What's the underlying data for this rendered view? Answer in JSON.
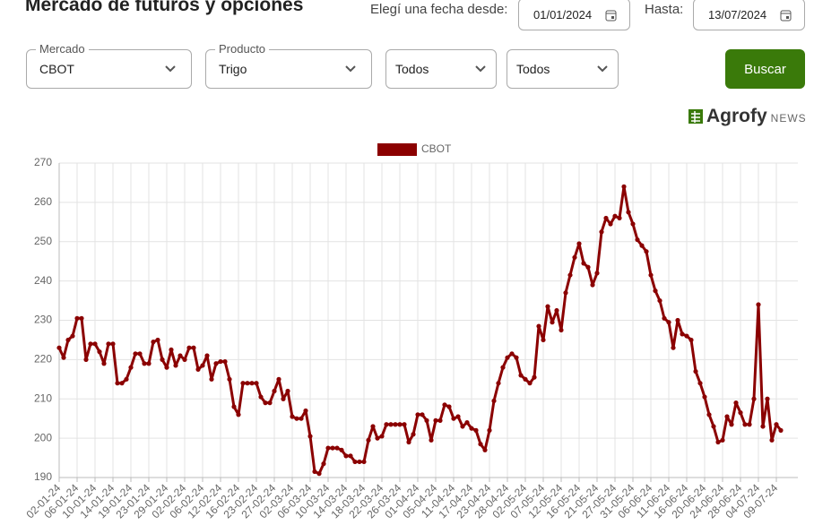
{
  "header": {
    "title": "Mercado de futuros y opciones",
    "date_from_label": "Elegí una fecha desde:",
    "date_from": "01/01/2024",
    "date_to_label": "Hasta:",
    "date_to": "13/07/2024"
  },
  "filters": [
    {
      "label": "Mercado",
      "value": "CBOT"
    },
    {
      "label": "Producto",
      "value": "Trigo"
    },
    {
      "value": "Todos"
    },
    {
      "value": "Todos"
    }
  ],
  "button": "Buscar",
  "logo": {
    "brand": "Agrofy",
    "sub": "NEWS"
  },
  "chart_data": {
    "type": "line",
    "categories": [
      "02-01-24",
      null,
      null,
      null,
      "06-01-24",
      null,
      null,
      null,
      "10-01-24",
      null,
      null,
      null,
      "14-01-24",
      null,
      null,
      null,
      "19-01-24",
      null,
      null,
      null,
      "23-01-24",
      null,
      null,
      null,
      "29-01-24",
      null,
      null,
      null,
      "02-02-24",
      null,
      null,
      null,
      "06-02-24",
      null,
      null,
      null,
      "12-02-24",
      null,
      null,
      null,
      "16-02-24",
      null,
      null,
      null,
      "23-02-24",
      null,
      null,
      null,
      "27-02-24",
      null,
      null,
      null,
      "02-03-24",
      null,
      null,
      null,
      "06-03-24",
      null,
      null,
      null,
      "10-03-24",
      null,
      null,
      null,
      "14-03-24",
      null,
      null,
      null,
      "18-03-24",
      null,
      null,
      null,
      "22-03-24",
      null,
      null,
      null,
      "26-03-24",
      null,
      null,
      null,
      "01-04-24",
      null,
      null,
      null,
      "05-04-24",
      null,
      null,
      null,
      "11-04-24",
      null,
      null,
      null,
      "17-04-24",
      null,
      null,
      null,
      "23-04-24",
      null,
      null,
      null,
      "28-04-24",
      null,
      null,
      null,
      "02-05-24",
      null,
      null,
      null,
      "07-05-24",
      null,
      null,
      null,
      "12-05-24",
      null,
      null,
      null,
      "16-05-24",
      null,
      null,
      null,
      "21-05-24",
      null,
      null,
      null,
      "27-05-24",
      null,
      null,
      null,
      "31-05-24",
      null,
      null,
      null,
      "06-06-24",
      null,
      null,
      null,
      "11-06-24",
      null,
      null,
      null,
      "16-06-24",
      null,
      null,
      null,
      "20-06-24",
      null,
      null,
      null,
      "24-06-24",
      null,
      null,
      null,
      "28-06-24",
      null,
      null,
      null,
      "04-07-24",
      null,
      null,
      null,
      "09-07-24",
      null
    ],
    "series": [
      {
        "name": "CBOT",
        "color": "#8b0000",
        "values": [
          223,
          220.5,
          225,
          226,
          230.5,
          230.5,
          220,
          224,
          224,
          222,
          219,
          224,
          224,
          214,
          214,
          215,
          218,
          221.5,
          221.5,
          219,
          219,
          224.5,
          225,
          220,
          218,
          222.5,
          218.5,
          221,
          220,
          223,
          223,
          217.5,
          218.5,
          221,
          215,
          219,
          219.5,
          219.5,
          215,
          208,
          206,
          214,
          214,
          214,
          214,
          210.5,
          209,
          209,
          212,
          215,
          210,
          212,
          205.5,
          205,
          205,
          207,
          200.5,
          191.5,
          191,
          193.5,
          197.5,
          197.5,
          197.5,
          197,
          195.5,
          195.5,
          194,
          194,
          194,
          199.5,
          203,
          200,
          200.5,
          203.5,
          203.5,
          203.5,
          203.5,
          203.5,
          199,
          201,
          206,
          206,
          204.5,
          199.5,
          204.5,
          204.5,
          208.5,
          208,
          205,
          205.5,
          203,
          204,
          202.5,
          202,
          198.5,
          197,
          202,
          209.5,
          214,
          218,
          220.5,
          221.5,
          220.5,
          216,
          215,
          214,
          215.5,
          228.5,
          225,
          233.5,
          229.5,
          232.5,
          227.5,
          237,
          241.5,
          246,
          249.5,
          244.5,
          243.5,
          239,
          242,
          252.5,
          256,
          254.5,
          256.5,
          256,
          264,
          257.5,
          254.5,
          250.5,
          249,
          247.5,
          241.5,
          237.5,
          235,
          230.5,
          229.5,
          223,
          230,
          226.5,
          226,
          225,
          217,
          214,
          210.5,
          206,
          203,
          199,
          199.5,
          205.5,
          203.5,
          209,
          206.5,
          203.5,
          203.5,
          210,
          234,
          203,
          210,
          199.5,
          203.5,
          202
        ]
      }
    ],
    "ylim": [
      190,
      270
    ],
    "yticks": [
      190,
      200,
      210,
      220,
      230,
      240,
      250,
      260,
      270
    ],
    "grid": true
  }
}
